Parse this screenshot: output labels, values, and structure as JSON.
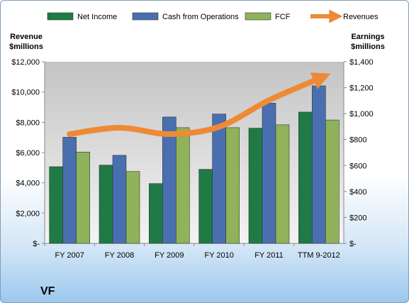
{
  "colors": {
    "net_income": "#1f7a45",
    "cash_from_operations": "#4a6fb0",
    "fcf": "#8fb25a",
    "revenues": "#ee8a36",
    "plot_bg_top": "#c4c4c4",
    "plot_bg_bottom": "#f4f4f4"
  },
  "company_label": "VF",
  "chart_data": {
    "type": "bar",
    "title": "",
    "categories": [
      "FY 2007",
      "FY 2008",
      "FY 2009",
      "FY 2010",
      "FY 2011",
      "TTM 9-2012"
    ],
    "y_left": {
      "label_lines": [
        "Revenue",
        "$millions"
      ],
      "ticks": [
        0,
        2000,
        4000,
        6000,
        8000,
        10000,
        12000
      ],
      "tick_labels": [
        "$-",
        "$2,000",
        "$4,000",
        "$6,000",
        "$8,000",
        "$10,000",
        "$12,000"
      ],
      "ylim": [
        0,
        12000
      ]
    },
    "y_right": {
      "label_lines": [
        "Earnings",
        "$millions"
      ],
      "ticks": [
        0,
        200,
        400,
        600,
        800,
        1000,
        1200,
        1400
      ],
      "tick_labels": [
        "$-",
        "$200",
        "$400",
        "$600",
        "$800",
        "$1,000",
        "$1,200",
        "$1,400"
      ],
      "ylim": [
        0,
        1400
      ]
    },
    "series": [
      {
        "name": "Net Income",
        "type": "bar",
        "axis": "right",
        "values": [
          591,
          603,
          461,
          571,
          888,
          1012
        ]
      },
      {
        "name": "Cash from Operations",
        "type": "bar",
        "axis": "right",
        "values": [
          818,
          679,
          974,
          997,
          1081,
          1214
        ]
      },
      {
        "name": "FCF",
        "type": "bar",
        "axis": "right",
        "values": [
          704,
          554,
          892,
          892,
          914,
          951
        ]
      },
      {
        "name": "Revenues",
        "type": "line",
        "axis": "left",
        "values": [
          7219,
          7643,
          7220,
          7702,
          9459,
          10880
        ]
      }
    ],
    "legend_position": "top",
    "grid": false
  }
}
